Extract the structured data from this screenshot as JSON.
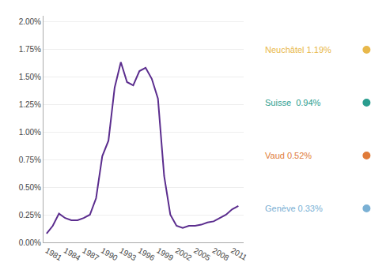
{
  "chart_data": {
    "type": "line",
    "x": [
      1981,
      1982,
      1983,
      1984,
      1985,
      1986,
      1987,
      1988,
      1989,
      1990,
      1991,
      1992,
      1993,
      1994,
      1995,
      1996,
      1997,
      1998,
      1999,
      2000,
      2001,
      2002,
      2003,
      2004,
      2005,
      2006,
      2007,
      2008,
      2009,
      2010,
      2011,
      2012
    ],
    "values": [
      0.0008,
      0.0015,
      0.0026,
      0.0022,
      0.002,
      0.002,
      0.0022,
      0.0025,
      0.004,
      0.0078,
      0.0092,
      0.014,
      0.0163,
      0.0145,
      0.0142,
      0.0155,
      0.0158,
      0.0148,
      0.013,
      0.006,
      0.0025,
      0.0015,
      0.0013,
      0.0015,
      0.0015,
      0.0016,
      0.0018,
      0.0019,
      0.0022,
      0.0025,
      0.003,
      0.0033
    ],
    "color": "#5b2d8e",
    "xlim": [
      1980.5,
      2012.8
    ],
    "xticks": [
      1981,
      1984,
      1987,
      1990,
      1993,
      1996,
      1999,
      2002,
      2005,
      2008,
      2011
    ],
    "ylim": [
      0.0,
      0.0205
    ],
    "yticks": [
      {
        "value": 0.0,
        "label": "0.00%"
      },
      {
        "value": 0.0025,
        "label": "0.25%"
      },
      {
        "value": 0.005,
        "label": "0.50%"
      },
      {
        "value": 0.0075,
        "label": "0.75%"
      },
      {
        "value": 0.01,
        "label": "1.00%"
      },
      {
        "value": 0.0125,
        "label": "1.25%"
      },
      {
        "value": 0.015,
        "label": "1.50%"
      },
      {
        "value": 0.0175,
        "label": "1.75%"
      },
      {
        "value": 0.02,
        "label": "2.00%"
      }
    ],
    "grid": true,
    "annotations": [
      {
        "text": "Neuchâtel 1.19%",
        "color": "#e8b84b"
      },
      {
        "text": "Suisse  0.94%",
        "color": "#2a9d8f"
      },
      {
        "text": "Vaud 0.52%",
        "color": "#e07b39"
      },
      {
        "text": "Genève 0.33%",
        "color": "#7ab0d4"
      }
    ]
  }
}
